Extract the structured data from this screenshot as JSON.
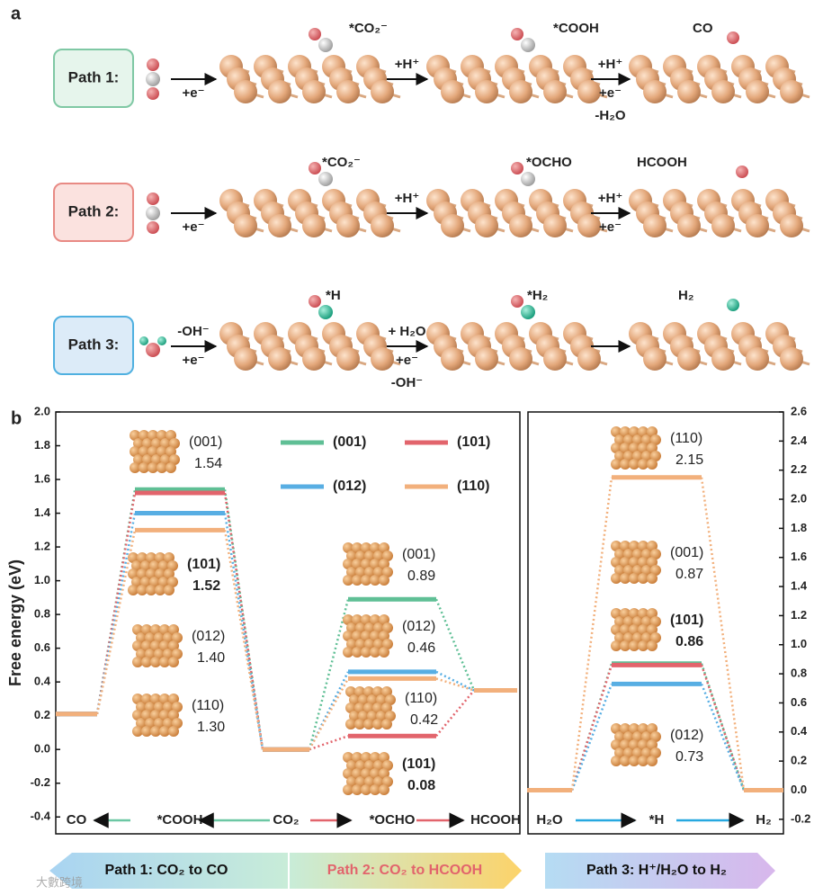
{
  "panel_a": {
    "label": "a",
    "paths": [
      {
        "label": "Path 1:",
        "species": [
          "*CO₂⁻",
          "*COOH",
          "CO"
        ],
        "steps": [
          {
            "below": [
              "+e⁻"
            ]
          },
          {
            "above": [
              "+H⁺"
            ]
          },
          {
            "above": [
              "+H⁺"
            ],
            "below": [
              "+e⁻",
              "-H₂O"
            ]
          }
        ]
      },
      {
        "label": "Path 2:",
        "species": [
          "*CO₂⁻",
          "*OCHO",
          "HCOOH"
        ],
        "steps": [
          {
            "below": [
              "+e⁻"
            ]
          },
          {
            "above": [
              "+H⁺"
            ]
          },
          {
            "above": [
              "+H⁺"
            ],
            "below": [
              "+e⁻"
            ]
          }
        ]
      },
      {
        "label": "Path 3:",
        "species": [
          "*H",
          "*H₂",
          "H₂"
        ],
        "steps": [
          {
            "above": [
              "-OH⁻"
            ],
            "below": [
              "+e⁻"
            ]
          },
          {
            "above": [
              "+ H₂O"
            ],
            "below": [
              "+e⁻",
              "-OH⁻"
            ]
          }
        ]
      }
    ]
  },
  "panel_b_label": "b",
  "chart_data": [
    {
      "type": "energy",
      "ylabel": "Free energy (eV)",
      "y_axis_side": "left",
      "legend": true,
      "categories": [
        "CO",
        "*COOH",
        "CO₂",
        "*OCHO",
        "HCOOH"
      ],
      "ylim": [
        -0.5,
        2.0
      ],
      "yticks": [
        -0.4,
        -0.2,
        {
          "value": 0,
          "label": "0.0"
        },
        0.2,
        0.4,
        0.6,
        0.8,
        {
          "value": 1,
          "label": "1.0"
        },
        1.2,
        1.4,
        1.6,
        1.8,
        {
          "value": 2,
          "label": "2.0"
        }
      ],
      "series": [
        {
          "name": "(001)",
          "color": "#5fbf95",
          "values": [
            0.21,
            1.54,
            0,
            0.89,
            0.35
          ],
          "value_labels": [
            null,
            "1.54",
            null,
            "0.89",
            null
          ]
        },
        {
          "name": "(101)",
          "color": "#e2646c",
          "label_weight": "bold",
          "values": [
            0.21,
            1.52,
            0,
            0.08,
            0.35
          ],
          "value_labels": [
            null,
            "1.52",
            null,
            "0.08",
            null
          ]
        },
        {
          "name": "(012)",
          "color": "#58aee3",
          "values": [
            0.21,
            1.4,
            0,
            0.46,
            0.35
          ],
          "value_labels": [
            null,
            "1.40",
            null,
            "0.46",
            null
          ]
        },
        {
          "name": "(110)",
          "color": "#f2b07c",
          "values": [
            0.21,
            1.3,
            0,
            0.42,
            0.35
          ],
          "value_labels": [
            null,
            "1.30",
            null,
            "0.42",
            null
          ]
        }
      ]
    },
    {
      "type": "energy",
      "y_axis_side": "right",
      "legend": false,
      "categories": [
        "H₂O",
        "*H",
        "H₂"
      ],
      "ylim": [
        -0.3,
        2.6
      ],
      "yticks": [
        -0.2,
        {
          "value": 0,
          "label": "0.0"
        },
        0.2,
        0.4,
        0.6,
        0.8,
        {
          "value": 1,
          "label": "1.0"
        },
        1.2,
        1.4,
        1.6,
        1.8,
        {
          "value": 2,
          "label": "2.0"
        },
        2.2,
        2.4,
        2.6
      ],
      "series": [
        {
          "name": "(001)",
          "color": "#5fbf95",
          "values": [
            0,
            0.87,
            0
          ],
          "value_labels": [
            null,
            "0.87",
            null
          ]
        },
        {
          "name": "(101)",
          "color": "#e2646c",
          "label_weight": "bold",
          "values": [
            0,
            0.86,
            0
          ],
          "value_labels": [
            null,
            "0.86",
            null
          ]
        },
        {
          "name": "(012)",
          "color": "#58aee3",
          "values": [
            0,
            0.73,
            0
          ],
          "value_labels": [
            null,
            "0.73",
            null
          ]
        },
        {
          "name": "(110)",
          "color": "#f2b07c",
          "values": [
            0,
            2.15,
            0
          ],
          "value_labels": [
            null,
            "2.15",
            null
          ]
        }
      ]
    }
  ],
  "banners": [
    "Path 1: CO₂ to CO",
    "Path 2: CO₂ to HCOOH",
    "Path 3: H⁺/H₂O to H₂"
  ],
  "watermark": "大數跨境"
}
